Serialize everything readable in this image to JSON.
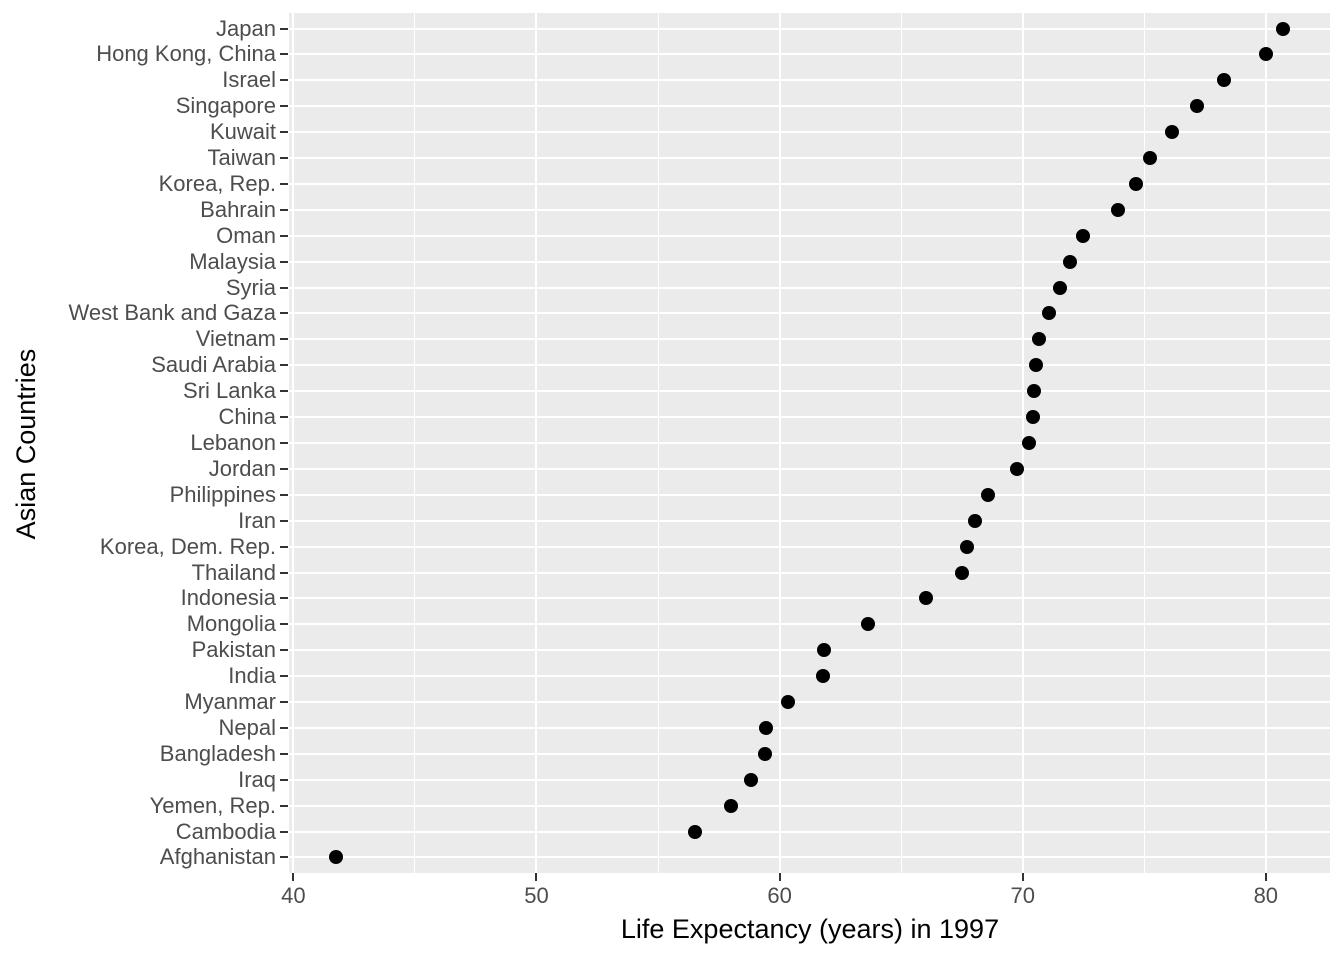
{
  "chart_data": {
    "type": "scatter",
    "title": "",
    "xlabel": "Life Expectancy (years) in 1997",
    "ylabel": "Asian Countries",
    "x_major_ticks": [
      40,
      50,
      60,
      70,
      80
    ],
    "x_minor_gridlines": [
      45,
      55,
      65,
      75
    ],
    "xlim": [
      39.82,
      82.64
    ],
    "grid": "on",
    "legend": "none",
    "points": [
      {
        "country": "Japan",
        "value": 80.69
      },
      {
        "country": "Hong Kong, China",
        "value": 80.0
      },
      {
        "country": "Israel",
        "value": 78.269
      },
      {
        "country": "Singapore",
        "value": 77.158
      },
      {
        "country": "Kuwait",
        "value": 76.156
      },
      {
        "country": "Taiwan",
        "value": 75.25
      },
      {
        "country": "Korea, Rep.",
        "value": 74.647
      },
      {
        "country": "Bahrain",
        "value": 73.925
      },
      {
        "country": "Oman",
        "value": 72.499
      },
      {
        "country": "Malaysia",
        "value": 71.938
      },
      {
        "country": "Syria",
        "value": 71.527
      },
      {
        "country": "West Bank and Gaza",
        "value": 71.096
      },
      {
        "country": "Vietnam",
        "value": 70.672
      },
      {
        "country": "Saudi Arabia",
        "value": 70.533
      },
      {
        "country": "Sri Lanka",
        "value": 70.457
      },
      {
        "country": "China",
        "value": 70.426
      },
      {
        "country": "Lebanon",
        "value": 70.265
      },
      {
        "country": "Jordan",
        "value": 69.772
      },
      {
        "country": "Philippines",
        "value": 68.564
      },
      {
        "country": "Iran",
        "value": 68.042
      },
      {
        "country": "Korea, Dem. Rep.",
        "value": 67.727
      },
      {
        "country": "Thailand",
        "value": 67.521
      },
      {
        "country": "Indonesia",
        "value": 66.041
      },
      {
        "country": "Mongolia",
        "value": 63.625
      },
      {
        "country": "Pakistan",
        "value": 61.818
      },
      {
        "country": "India",
        "value": 61.765
      },
      {
        "country": "Myanmar",
        "value": 60.328
      },
      {
        "country": "Nepal",
        "value": 59.426
      },
      {
        "country": "Bangladesh",
        "value": 59.412
      },
      {
        "country": "Iraq",
        "value": 58.811
      },
      {
        "country": "Yemen, Rep.",
        "value": 58.02
      },
      {
        "country": "Cambodia",
        "value": 56.534
      },
      {
        "country": "Afghanistan",
        "value": 41.763
      }
    ],
    "style": {
      "panel_bg": "#EBEBEB",
      "grid_color": "#FFFFFF",
      "point_color": "#000000",
      "axis_text_color": "#4D4D4D",
      "axis_title_color": "#000000",
      "tick_color": "#333333"
    }
  }
}
